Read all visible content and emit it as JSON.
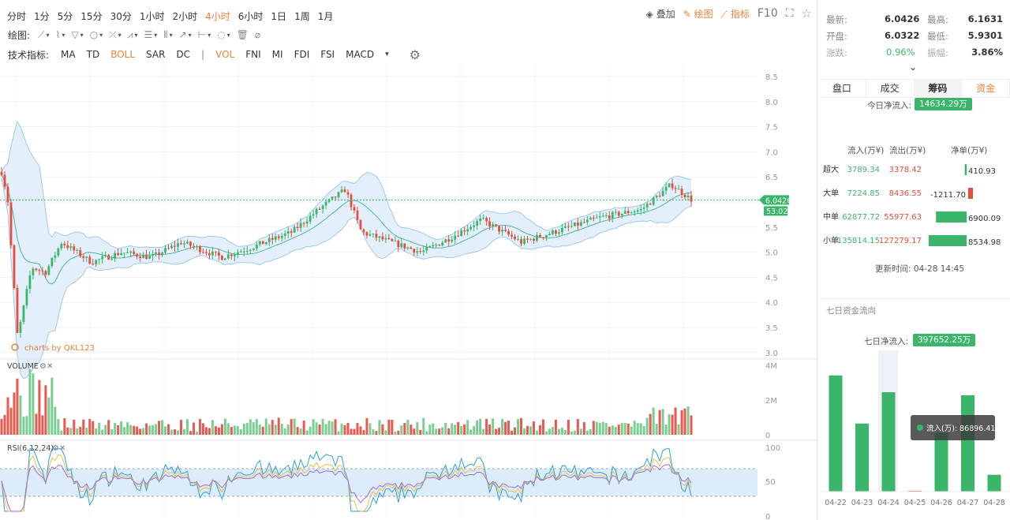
{
  "periods": [
    "分时",
    "1分",
    "5分",
    "15分",
    "30分",
    "1小时",
    "2小时",
    "4小时",
    "6小时",
    "1日",
    "1周",
    "1月"
  ],
  "active_period": "4小时",
  "toolbar_right": {
    "overlay": "叠加",
    "draw": "绘图",
    "indicators": "指标",
    "f10": "F10"
  },
  "draw_label": "绘图:",
  "tech_label": "技术指标:",
  "tech_indicators": [
    "MA",
    "TD",
    "BOLL",
    "SAR",
    "DC",
    "VOL",
    "FNI",
    "MI",
    "FDI",
    "FSI",
    "MACD"
  ],
  "active_indicators": [
    "BOLL",
    "VOL"
  ],
  "price_axis": [
    "8.5",
    "8.0",
    "7.5",
    "7.0",
    "6.5",
    "6.0",
    "5.5",
    "5.0",
    "4.5",
    "4.0",
    "3.5",
    "3.0"
  ],
  "volume_axis": [
    "4M",
    "2M",
    "0"
  ],
  "rsi_axis": [
    "100",
    "50",
    "0"
  ],
  "last_price_tag": "6.0426",
  "countdown_tag": "53:02",
  "watermark": "charts by QKL123",
  "volume_label": "VOLUME",
  "rsi_label": "RSI(6,12,24)",
  "colors": {
    "up": "#3bb569",
    "down": "#e74c3c",
    "accent": "#e8833a",
    "boll": "#9fc9e8",
    "boll_fill": "#e3f0fb",
    "rsi_fill": "#dcecfb"
  },
  "quote": {
    "latest_label": "最新:",
    "latest": "6.0426",
    "high_label": "最高:",
    "high": "6.1631",
    "open_label": "开盘:",
    "open": "6.0322",
    "low_label": "最低:",
    "low": "5.9301",
    "change_label": "涨跌:",
    "change": "0.96%",
    "amplitude_label": "振幅:",
    "amplitude": "3.86%"
  },
  "tabs": [
    "盘口",
    "成交",
    "筹码",
    "资金"
  ],
  "active_tab": "筹码",
  "fund": {
    "today_label": "今日净流入:",
    "today_value": "14634.29万",
    "headers": [
      "流入(万¥)",
      "流出(万¥)",
      "净单(万¥)"
    ],
    "rows": [
      {
        "name": "超大",
        "in": "3789.34",
        "out": "3378.42",
        "net": "410.93",
        "net_value": 410.93
      },
      {
        "name": "大单",
        "in": "7224.85",
        "out": "8436.55",
        "net": "-1211.70",
        "net_value": -1211.7
      },
      {
        "name": "中单",
        "in": "62877.72",
        "out": "55977.63",
        "net": "6900.09",
        "net_value": 6900.09
      },
      {
        "name": "小单",
        "in": "135814.15",
        "out": "127279.17",
        "net": "8534.98",
        "net_value": 8534.98
      }
    ],
    "update_label": "更新时间:",
    "update_time": "04-28 14:45"
  },
  "seven_day": {
    "title": "七日资金流向",
    "net_label": "七日净流入:",
    "net_value": "397652.25万",
    "tooltip": "流入(万): 86896.41"
  },
  "chart_data": {
    "type": "bar",
    "categories": [
      "04-22",
      "04-23",
      "04-24",
      "04-25",
      "04-26",
      "04-27",
      "04-28"
    ],
    "values": [
      152000,
      89000,
      130000,
      1000,
      77000,
      126000,
      22000
    ],
    "series": [
      {
        "name": "流入(万)",
        "values": [
          152000,
          89000,
          130000,
          1000,
          77000,
          126000,
          22000
        ]
      }
    ],
    "tooltip_value": 86896.41
  }
}
